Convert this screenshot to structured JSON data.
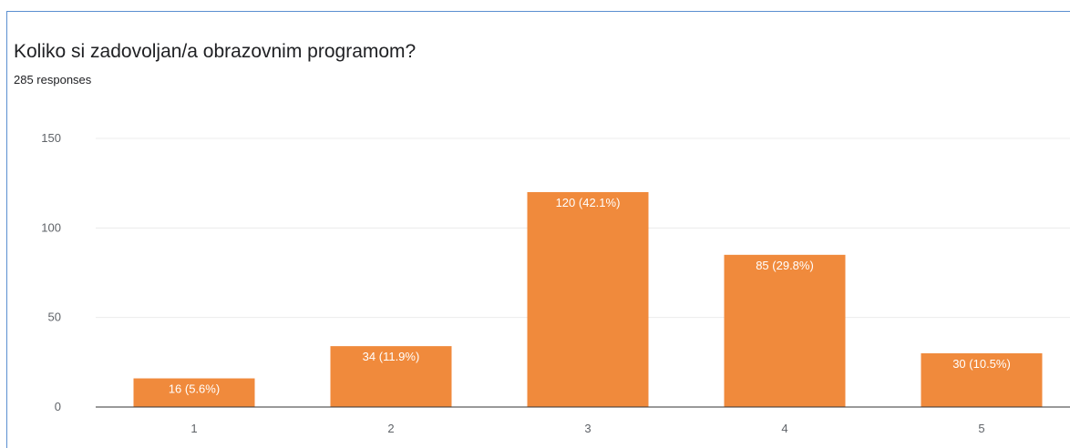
{
  "question": {
    "title": "Koliko si zadovoljan/a obrazovnim programom?",
    "responses": "285 responses"
  },
  "colors": {
    "bar": "#f08a3c",
    "grid": "#ececec",
    "axis": "#333333",
    "tick_text": "#5f6368",
    "bar_label": "#ffffff",
    "border": "#5b8fd0"
  },
  "chart_data": {
    "type": "bar",
    "categories": [
      "1",
      "2",
      "3",
      "4",
      "5"
    ],
    "values": [
      16,
      34,
      120,
      85,
      30
    ],
    "labels": [
      "16 (5.6%)",
      "34 (11.9%)",
      "120 (42.1%)",
      "85 (29.8%)",
      "30 (10.5%)"
    ],
    "ylim": [
      0,
      150
    ],
    "yticks": [
      0,
      50,
      100,
      150
    ],
    "grid": true,
    "xlabel": "",
    "ylabel": ""
  }
}
